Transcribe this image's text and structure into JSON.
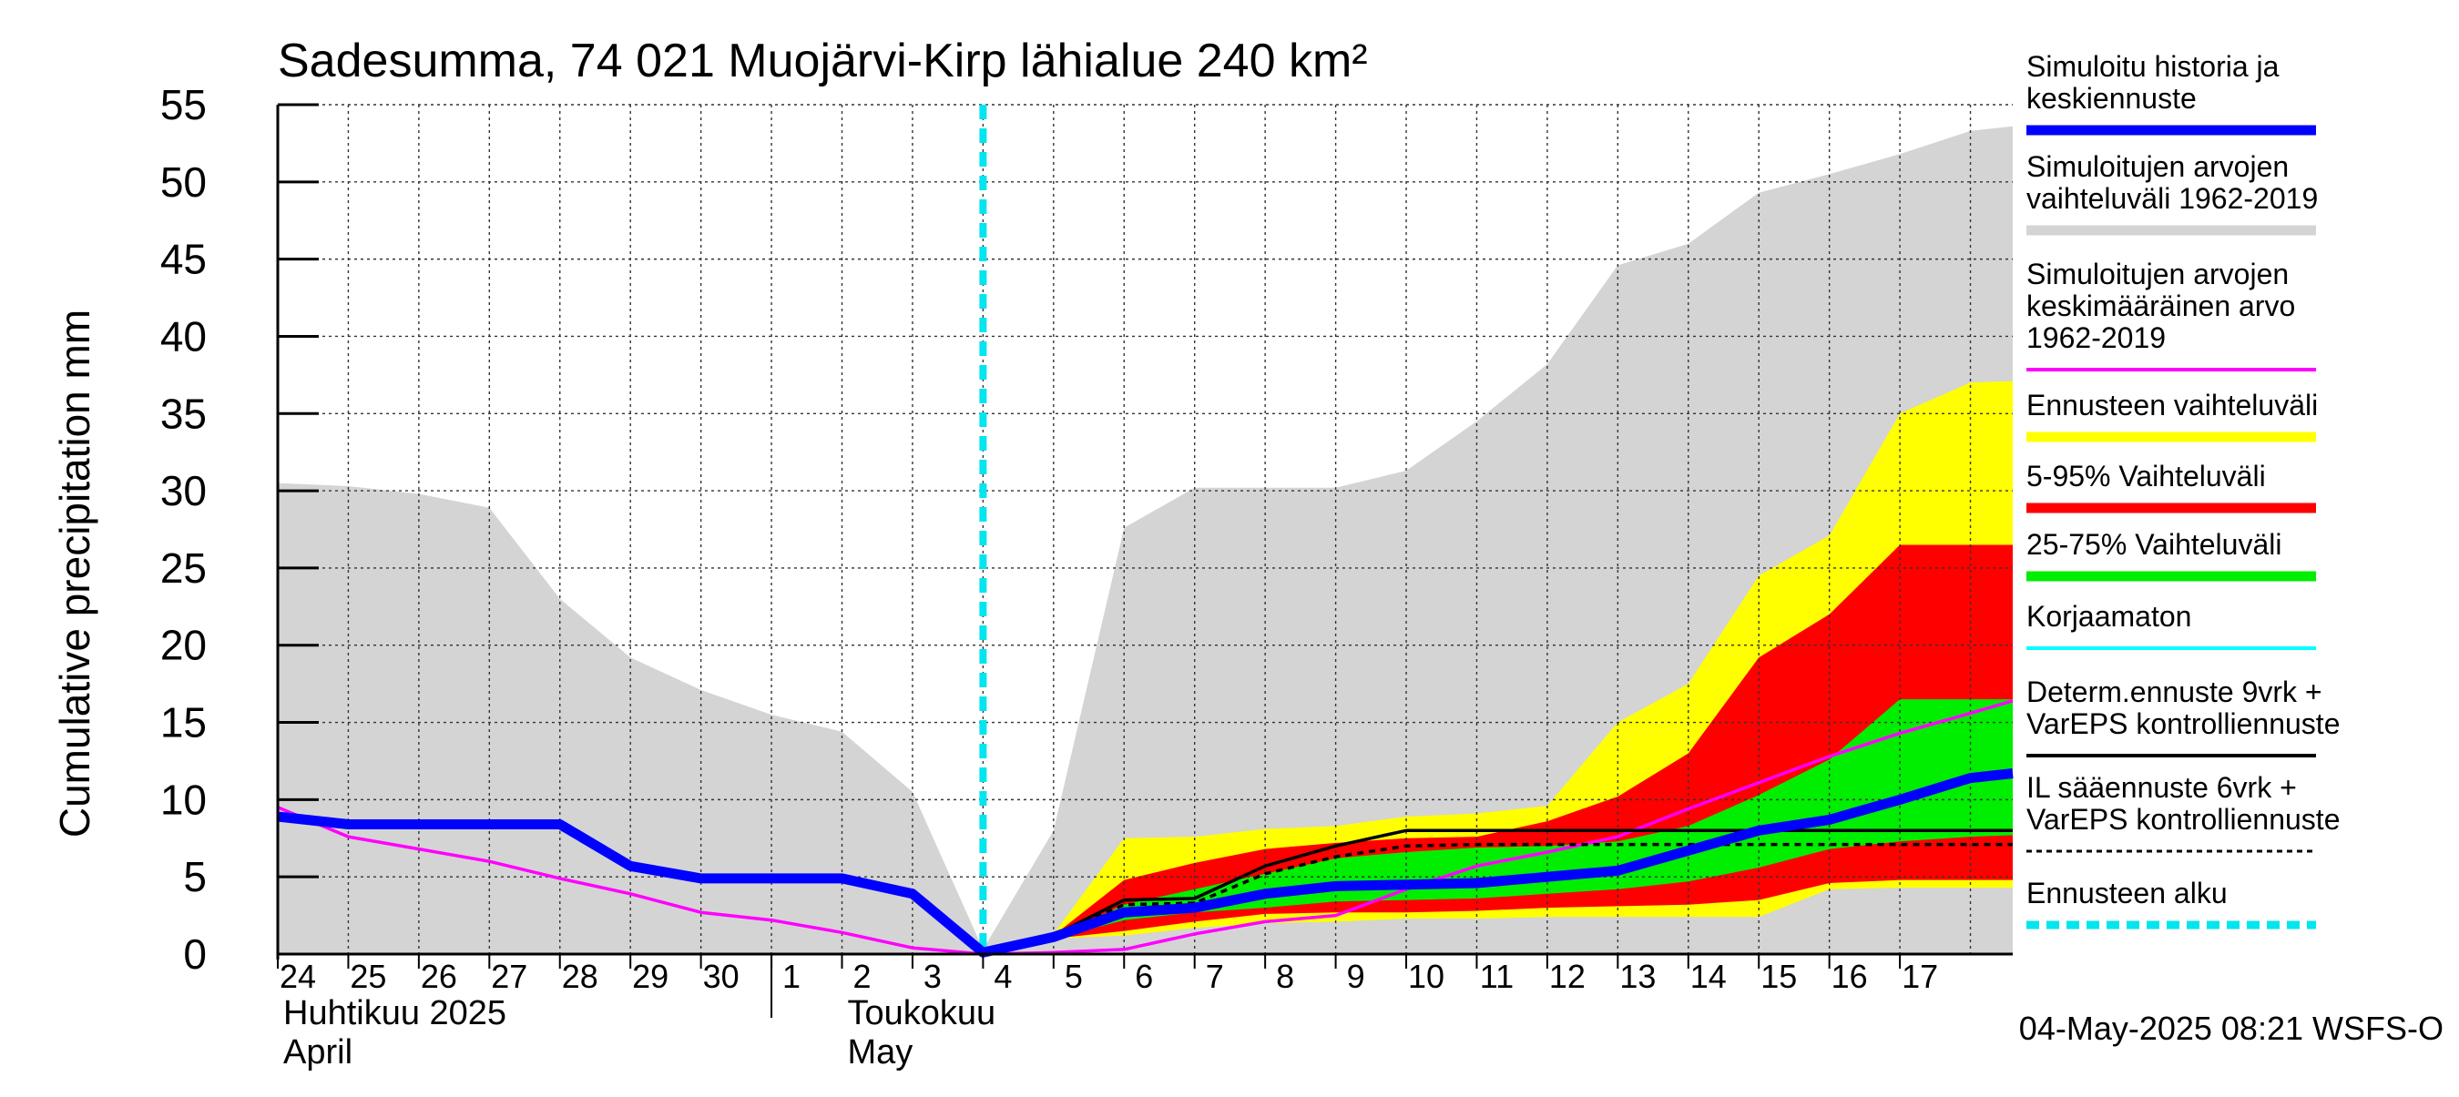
{
  "chart_data": {
    "type": "area",
    "title": "Sadesumma, 74 021 Muojärvi-Kirp lähialue 240 km²",
    "ylabel": "Cumulative precipitation   mm",
    "ylim": [
      0,
      55
    ],
    "xlim": [
      0,
      24.6
    ],
    "y_ticks": [
      "0",
      "5",
      "10",
      "15",
      "20",
      "25",
      "30",
      "35",
      "40",
      "45",
      "50",
      "55"
    ],
    "x_tick_labels": [
      "24",
      "25",
      "26",
      "27",
      "28",
      "29",
      "30",
      "1",
      "2",
      "3",
      "4",
      "5",
      "6",
      "7",
      "8",
      "9",
      "10",
      "11",
      "12",
      "13",
      "14",
      "15",
      "16",
      "17"
    ],
    "month_labels": [
      {
        "line1": "Huhtikuu  2025",
        "line2": "April"
      },
      {
        "line1": "Toukokuu",
        "line2": "May"
      }
    ],
    "forecast_start_x": 10,
    "grid": true,
    "legend_position": "right",
    "footer": "04-May-2025 08:21 WSFS-O",
    "colors": {
      "history_band": "#d4d4d4",
      "forecast_range": "#ffff00",
      "range_5_95": "#ff0000",
      "range_25_75": "#00ee00",
      "mean_history": "#ff00ff",
      "simulated": "#0000ff",
      "uncorrected": "#00ffff",
      "deterministic": "#000000",
      "forecast_start": "#00e5ee"
    },
    "history_band": {
      "x": [
        0,
        1,
        2,
        3,
        4,
        5,
        6,
        7,
        8,
        9,
        10,
        11,
        12,
        13,
        14,
        15,
        16,
        17,
        18,
        19,
        20,
        21,
        22,
        23,
        24,
        24.6
      ],
      "upper": [
        30.5,
        30.3,
        29.8,
        28.9,
        23.0,
        19.2,
        17.1,
        15.5,
        14.4,
        10.5,
        0.3,
        8.0,
        27.6,
        30.2,
        30.2,
        30.2,
        31.3,
        34.5,
        38.2,
        44.6,
        46.0,
        49.3,
        50.5,
        51.8,
        53.3,
        53.6
      ],
      "lower": [
        0,
        0,
        0,
        0,
        0,
        0,
        0,
        0,
        0,
        0,
        0,
        0,
        0,
        0,
        0,
        0,
        0,
        0,
        0,
        0,
        0,
        0,
        0,
        0,
        0,
        0
      ]
    },
    "forecast_x": [
      10,
      11,
      12,
      13,
      14,
      15,
      16,
      17,
      18,
      19,
      20,
      21,
      22,
      23,
      24,
      24.6
    ],
    "forecast_range": {
      "upper": [
        0,
        1.3,
        7.5,
        7.6,
        8.1,
        8.3,
        8.9,
        9.1,
        9.6,
        15.0,
        17.5,
        24.5,
        27.1,
        35.0,
        37.0,
        37.1
      ],
      "lower": [
        0,
        1.0,
        1.2,
        1.7,
        2.0,
        2.1,
        2.3,
        2.3,
        2.4,
        2.4,
        2.4,
        2.4,
        4.2,
        4.3,
        4.3,
        4.3
      ]
    },
    "range_5_95": {
      "upper": [
        0,
        1.2,
        4.8,
        5.9,
        6.8,
        7.2,
        7.5,
        7.6,
        8.6,
        10.2,
        13.0,
        19.2,
        22.0,
        26.5,
        26.5,
        26.5
      ],
      "lower": [
        0,
        1.0,
        1.5,
        2.1,
        2.6,
        2.7,
        2.7,
        2.8,
        3.0,
        3.1,
        3.2,
        3.5,
        4.6,
        4.8,
        4.8,
        4.8
      ]
    },
    "range_25_75": {
      "upper": [
        0,
        1.1,
        3.2,
        4.2,
        5.2,
        6.2,
        6.6,
        6.9,
        7.0,
        7.3,
        8.3,
        10.3,
        12.6,
        16.5,
        16.5,
        16.5
      ],
      "lower": [
        0,
        1.0,
        2.2,
        2.7,
        3.0,
        3.4,
        3.5,
        3.6,
        3.9,
        4.2,
        4.7,
        5.6,
        6.8,
        7.3,
        7.6,
        7.7
      ]
    },
    "series": [
      {
        "name": "Simuloitujen arvojen keskimääräinen arvo 1962-2019",
        "color_key": "mean_history",
        "x": [
          0,
          1,
          2,
          3,
          4,
          5,
          6,
          7,
          8,
          9,
          10,
          11,
          12,
          13,
          14,
          15,
          16,
          17,
          18,
          19,
          20,
          21,
          22,
          23,
          24,
          24.6
        ],
        "y": [
          9.5,
          7.6,
          6.8,
          6.0,
          4.9,
          3.9,
          2.7,
          2.2,
          1.4,
          0.4,
          0.0,
          0.1,
          0.3,
          1.3,
          2.1,
          2.5,
          4.2,
          5.7,
          6.6,
          7.6,
          9.4,
          11.1,
          12.8,
          14.3,
          15.6,
          16.4
        ]
      },
      {
        "name": "Korjaamaton",
        "color_key": "uncorrected",
        "x": [
          0,
          1,
          2,
          3,
          4,
          5,
          6,
          7,
          8,
          9,
          10
        ],
        "y": [
          8.8,
          8.3,
          8.3,
          8.3,
          8.3,
          5.5,
          4.8,
          4.8,
          4.8,
          3.8,
          0.1
        ]
      },
      {
        "name": "IL sääennuste 6vrk  +   VarEPS kontrolliennuste",
        "color_key": "deterministic",
        "dashed": true,
        "x": [
          10,
          11,
          12,
          13,
          14,
          15,
          16,
          17,
          18,
          19,
          24.6
        ],
        "y": [
          0.1,
          1.2,
          3.2,
          3.3,
          5.2,
          6.3,
          7.0,
          7.1,
          7.1,
          7.1,
          7.1
        ]
      },
      {
        "name": "Determ.ennuste 9vrk +  VarEPS kontrolliennuste",
        "color_key": "deterministic",
        "x": [
          10,
          11,
          12,
          13,
          14,
          15,
          16,
          17,
          18,
          19,
          20,
          21,
          22,
          23,
          24,
          24.6
        ],
        "y": [
          0.1,
          1.2,
          3.5,
          3.6,
          5.7,
          7.0,
          8.0,
          8.0,
          8.0,
          8.0,
          8.0,
          8.0,
          8.0,
          8.0,
          8.0,
          8.0
        ]
      },
      {
        "name": "Simuloitu historia ja keskiennuste",
        "color_key": "simulated",
        "thick": true,
        "x": [
          0,
          1,
          2,
          3,
          4,
          5,
          6,
          7,
          8,
          9,
          10,
          11,
          12,
          13,
          14,
          15,
          16,
          17,
          18,
          19,
          20,
          21,
          22,
          23,
          24,
          24.6
        ],
        "y": [
          8.9,
          8.4,
          8.4,
          8.4,
          8.4,
          5.7,
          4.9,
          4.9,
          4.9,
          3.9,
          0.1,
          1.1,
          2.7,
          3.0,
          3.9,
          4.4,
          4.5,
          4.6,
          5.0,
          5.4,
          6.7,
          8.0,
          8.7,
          10.0,
          11.4,
          11.7
        ]
      }
    ],
    "legend": [
      {
        "label_lines": [
          "Simuloitu historia ja",
          "keskiennuste"
        ],
        "color_key": "simulated",
        "style": "thick"
      },
      {
        "label_lines": [
          "Simuloitujen arvojen",
          "vaihteluväli 1962-2019"
        ],
        "color_key": "history_band",
        "style": "thick"
      },
      {
        "label_lines": [
          "Simuloitujen arvojen",
          "keskimääräinen arvo",
          "   1962-2019"
        ],
        "color_key": "mean_history",
        "style": "thin"
      },
      {
        "label_lines": [
          "Ennusteen vaihteluväli"
        ],
        "color_key": "forecast_range",
        "style": "thick"
      },
      {
        "label_lines": [
          "5-95% Vaihteluväli"
        ],
        "color_key": "range_5_95",
        "style": "thick"
      },
      {
        "label_lines": [
          "25-75% Vaihteluväli"
        ],
        "color_key": "range_25_75",
        "style": "thick"
      },
      {
        "label_lines": [
          "Korjaamaton"
        ],
        "color_key": "uncorrected",
        "style": "thin"
      },
      {
        "label_lines": [
          "Determ.ennuste 9vrk +",
          "VarEPS kontrolliennuste"
        ],
        "color_key": "deterministic",
        "style": "thin"
      },
      {
        "label_lines": [
          "IL sääennuste 6vrk  +",
          "  VarEPS kontrolliennuste"
        ],
        "color_key": "deterministic",
        "style": "dashed"
      },
      {
        "label_lines": [
          "Ennusteen alku"
        ],
        "color_key": "forecast_start",
        "style": "thickdash"
      }
    ]
  }
}
